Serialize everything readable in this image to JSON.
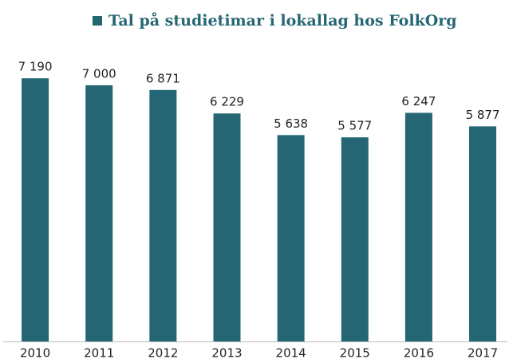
{
  "chart_data": {
    "type": "bar",
    "categories": [
      "2010",
      "2011",
      "2012",
      "2013",
      "2014",
      "2015",
      "2016",
      "2017"
    ],
    "series": [
      {
        "name": "Tal på studietimar i lokallag hos FolkOrg",
        "color": "#246673",
        "values": [
          7190,
          7000,
          6871,
          6229,
          5638,
          5577,
          6247,
          5877
        ],
        "value_labels": [
          "7 190",
          "7 000",
          "6 871",
          "6 229",
          "5 638",
          "5 577",
          "6 247",
          "5 877"
        ]
      }
    ],
    "ylim": [
      0,
      8000
    ],
    "legend": "top"
  }
}
